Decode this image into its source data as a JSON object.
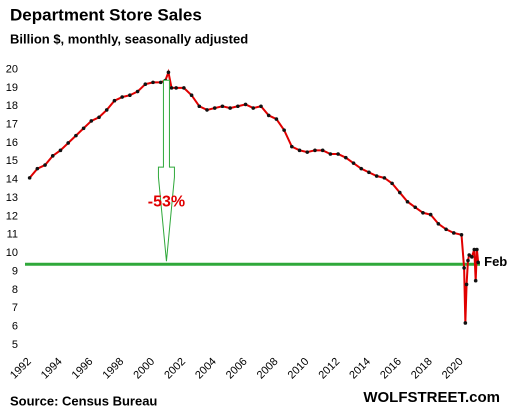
{
  "chart_data": {
    "type": "line",
    "title": "Department  Store Sales",
    "subtitle": "Billion $, monthly, seasonally adjusted",
    "source": "Source: Census Bureau",
    "brand": "WOLFSTREET.com",
    "annotation": "-53%",
    "end_label": "Feb",
    "x": [
      1992.0,
      1992.5,
      1993.0,
      1993.5,
      1994.0,
      1994.5,
      1995.0,
      1995.5,
      1996.0,
      1996.5,
      1997.0,
      1997.5,
      1998.0,
      1998.5,
      1999.0,
      1999.5,
      2000.0,
      2000.5,
      2000.8,
      2001.0,
      2001.2,
      2001.5,
      2002.0,
      2002.5,
      2003.0,
      2003.5,
      2004.0,
      2004.5,
      2005.0,
      2005.5,
      2006.0,
      2006.5,
      2007.0,
      2007.5,
      2008.0,
      2008.5,
      2009.0,
      2009.5,
      2010.0,
      2010.5,
      2011.0,
      2011.5,
      2012.0,
      2012.5,
      2013.0,
      2013.5,
      2014.0,
      2014.5,
      2015.0,
      2015.5,
      2016.0,
      2016.5,
      2017.0,
      2017.5,
      2018.0,
      2018.5,
      2019.0,
      2019.5,
      2020.0,
      2020.17,
      2020.25,
      2020.33,
      2020.42,
      2020.5,
      2020.67,
      2020.83,
      2020.92,
      2021.0,
      2021.08
    ],
    "series": [
      {
        "name": "Department store sales",
        "color": "#e00000",
        "marker_color": "#111111",
        "values": [
          14.1,
          14.6,
          14.8,
          15.3,
          15.6,
          16.0,
          16.4,
          16.8,
          17.2,
          17.4,
          17.8,
          18.3,
          18.5,
          18.6,
          18.8,
          19.2,
          19.3,
          19.3,
          19.4,
          19.85,
          19.0,
          19.0,
          19.0,
          18.6,
          18.0,
          17.8,
          17.9,
          18.0,
          17.9,
          18.0,
          18.1,
          17.9,
          18.0,
          17.5,
          17.3,
          16.7,
          15.8,
          15.6,
          15.5,
          15.6,
          15.6,
          15.4,
          15.4,
          15.2,
          14.9,
          14.6,
          14.4,
          14.2,
          14.1,
          13.8,
          13.3,
          12.8,
          12.5,
          12.2,
          12.1,
          11.6,
          11.3,
          11.1,
          11.0,
          9.2,
          6.2,
          8.3,
          9.6,
          9.9,
          9.8,
          10.2,
          8.5,
          10.2,
          9.5
        ]
      }
    ],
    "reference_line": {
      "value": 9.4,
      "color": "#2fa83a"
    },
    "xlim": [
      1991.7,
      2021.2
    ],
    "ylim": [
      5,
      20.3
    ],
    "xticks": [
      1992,
      1994,
      1996,
      1998,
      2000,
      2002,
      2004,
      2006,
      2008,
      2010,
      2012,
      2014,
      2016,
      2018,
      2020
    ],
    "yticks": [
      5,
      6,
      7,
      8,
      9,
      10,
      11,
      12,
      13,
      14,
      15,
      16,
      17,
      18,
      19,
      20
    ],
    "grid": false
  }
}
